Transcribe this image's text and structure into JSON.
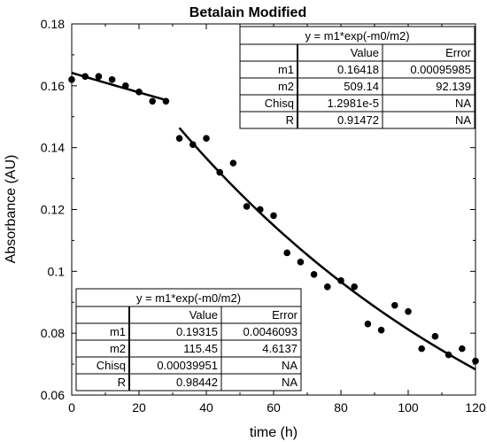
{
  "chart_data": {
    "type": "scatter",
    "title": "Betalain Modified",
    "xlabel": "time (h)",
    "ylabel": "Absorbance (AU)",
    "xlim": [
      0,
      120
    ],
    "ylim": [
      0.06,
      0.18
    ],
    "x_ticks": [
      "0",
      "20",
      "40",
      "60",
      "80",
      "100",
      "120"
    ],
    "y_ticks": [
      "0.06",
      "0.08",
      "0.1",
      "0.12",
      "0.14",
      "0.16",
      "0.18"
    ],
    "grid": false,
    "series": [
      {
        "points": [
          {
            "x": 0,
            "y": 0.162
          },
          {
            "x": 4,
            "y": 0.163
          },
          {
            "x": 8,
            "y": 0.163
          },
          {
            "x": 12,
            "y": 0.162
          },
          {
            "x": 16,
            "y": 0.16
          },
          {
            "x": 20,
            "y": 0.158
          },
          {
            "x": 24,
            "y": 0.155
          },
          {
            "x": 28,
            "y": 0.155
          },
          {
            "x": 32,
            "y": 0.143
          },
          {
            "x": 36,
            "y": 0.141
          },
          {
            "x": 40,
            "y": 0.143
          },
          {
            "x": 44,
            "y": 0.132
          },
          {
            "x": 48,
            "y": 0.135
          },
          {
            "x": 52,
            "y": 0.121
          },
          {
            "x": 56,
            "y": 0.12
          },
          {
            "x": 60,
            "y": 0.118
          },
          {
            "x": 64,
            "y": 0.106
          },
          {
            "x": 68,
            "y": 0.103
          },
          {
            "x": 72,
            "y": 0.099
          },
          {
            "x": 76,
            "y": 0.095
          },
          {
            "x": 80,
            "y": 0.097
          },
          {
            "x": 84,
            "y": 0.095
          },
          {
            "x": 88,
            "y": 0.083
          },
          {
            "x": 92,
            "y": 0.081
          },
          {
            "x": 96,
            "y": 0.089
          },
          {
            "x": 100,
            "y": 0.087
          },
          {
            "x": 104,
            "y": 0.075
          },
          {
            "x": 108,
            "y": 0.079
          },
          {
            "x": 112,
            "y": 0.073
          },
          {
            "x": 116,
            "y": 0.075
          },
          {
            "x": 120,
            "y": 0.071
          }
        ]
      }
    ],
    "fits": [
      {
        "m1": 0.16418,
        "m2": 509.14,
        "x_range": [
          0,
          28
        ]
      },
      {
        "m1": 0.19315,
        "m2": 115.45,
        "x_range": [
          32,
          120
        ]
      }
    ],
    "tables": [
      {
        "title": "y = m1*exp(-m0/m2)",
        "position": "top-right",
        "headers": [
          "",
          "Value",
          "Error"
        ],
        "rows": [
          [
            "m1",
            "0.16418",
            "0.00095985"
          ],
          [
            "m2",
            "509.14",
            "92.139"
          ],
          [
            "Chisq",
            "1.2981e-5",
            "NA"
          ],
          [
            "R",
            "0.91472",
            "NA"
          ]
        ]
      },
      {
        "title": "y = m1*exp(-m0/m2)",
        "position": "bottom-left",
        "headers": [
          "",
          "Value",
          "Error"
        ],
        "rows": [
          [
            "m1",
            "0.19315",
            "0.0046093"
          ],
          [
            "m2",
            "115.45",
            "4.6137"
          ],
          [
            "Chisq",
            "0.00039951",
            "NA"
          ],
          [
            "R",
            "0.98442",
            "NA"
          ]
        ]
      }
    ]
  }
}
